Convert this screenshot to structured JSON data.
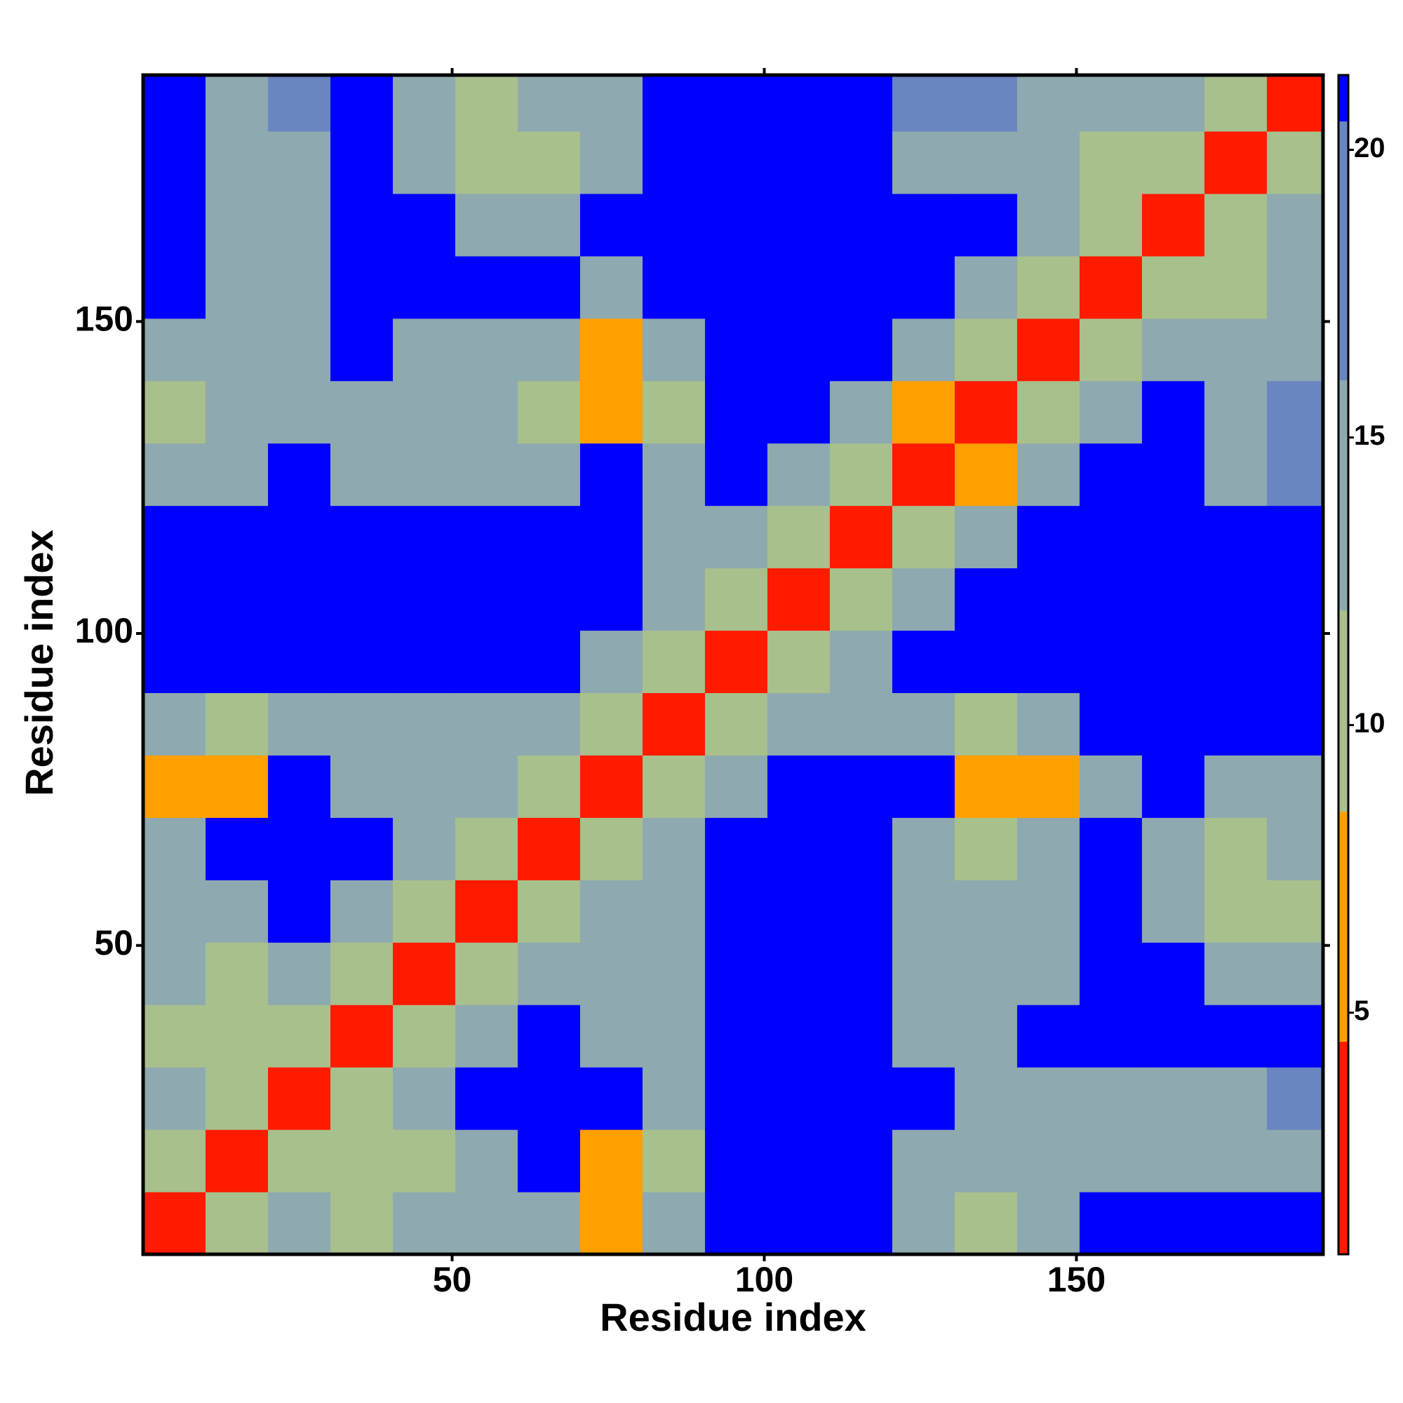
{
  "chart_data": {
    "type": "heatmap",
    "x_label": "Residue index",
    "y_label": "Residue index",
    "x_edges": [
      0.5,
      10.5,
      20.5,
      30.5,
      40.5,
      50.5,
      60.5,
      70.5,
      80.5,
      90.5,
      100.5,
      110.5,
      120.5,
      130.5,
      140.5,
      150.5,
      160.5,
      170.5,
      180.5,
      189.5
    ],
    "y_edges": [
      0.5,
      10.5,
      20.5,
      30.5,
      40.5,
      50.5,
      60.5,
      70.5,
      80.5,
      90.5,
      100.5,
      110.5,
      120.5,
      130.5,
      140.5,
      150.5,
      160.5,
      170.5,
      180.5,
      189.5
    ],
    "values": [
      [
        3,
        11,
        13,
        12,
        14,
        15,
        16,
        8,
        13,
        21,
        21,
        21,
        15,
        12,
        16,
        21,
        21,
        21,
        21
      ],
      [
        11,
        3,
        11,
        9,
        12,
        16,
        21,
        8,
        11,
        21,
        21,
        21,
        16,
        13,
        16,
        16,
        16,
        15,
        16
      ],
      [
        13,
        11,
        3,
        11,
        14,
        21,
        21,
        21,
        14,
        21,
        21,
        21,
        21,
        15,
        15,
        15,
        14,
        15,
        17
      ],
      [
        12,
        9,
        11,
        3,
        11,
        13,
        21,
        14,
        15,
        21,
        21,
        21,
        16,
        15,
        21,
        21,
        21,
        21,
        21
      ],
      [
        14,
        12,
        14,
        11,
        3,
        9,
        13,
        13,
        14,
        21,
        21,
        21,
        14,
        13,
        16,
        21,
        21,
        14,
        13
      ],
      [
        15,
        16,
        21,
        13,
        9,
        3,
        9,
        13,
        14,
        21,
        21,
        21,
        13,
        13,
        14,
        21,
        16,
        12,
        12
      ],
      [
        16,
        21,
        21,
        21,
        13,
        9,
        3,
        11,
        14,
        21,
        21,
        21,
        13,
        12,
        13,
        21,
        16,
        11,
        13
      ],
      [
        8,
        8,
        21,
        14,
        13,
        13,
        11,
        3,
        11,
        15,
        21,
        21,
        21,
        8,
        8,
        16,
        21,
        13,
        16
      ],
      [
        13,
        11,
        14,
        15,
        14,
        14,
        14,
        11,
        3,
        11,
        16,
        16,
        14,
        9,
        14,
        21,
        21,
        21,
        21
      ],
      [
        21,
        21,
        21,
        21,
        21,
        21,
        21,
        15,
        11,
        3,
        11,
        16,
        21,
        21,
        21,
        21,
        21,
        21,
        21
      ],
      [
        21,
        21,
        21,
        21,
        21,
        21,
        21,
        21,
        16,
        11,
        3,
        11,
        15,
        21,
        21,
        21,
        21,
        21,
        21
      ],
      [
        21,
        21,
        21,
        21,
        21,
        21,
        21,
        21,
        16,
        16,
        11,
        3,
        10,
        15,
        21,
        21,
        21,
        21,
        21
      ],
      [
        15,
        16,
        21,
        16,
        14,
        13,
        13,
        21,
        14,
        21,
        15,
        10,
        3,
        8,
        13,
        21,
        21,
        16,
        17
      ],
      [
        12,
        13,
        15,
        15,
        13,
        13,
        12,
        8,
        9,
        21,
        21,
        15,
        8,
        3,
        11,
        15,
        21,
        16,
        17
      ],
      [
        16,
        16,
        15,
        21,
        16,
        14,
        13,
        8,
        14,
        21,
        21,
        21,
        13,
        11,
        3,
        11,
        13,
        14,
        16
      ],
      [
        21,
        16,
        15,
        21,
        21,
        21,
        21,
        16,
        21,
        21,
        21,
        21,
        21,
        15,
        11,
        3,
        11,
        12,
        14
      ],
      [
        21,
        16,
        14,
        21,
        21,
        16,
        16,
        21,
        21,
        21,
        21,
        21,
        21,
        21,
        13,
        11,
        3,
        11,
        13
      ],
      [
        21,
        15,
        15,
        21,
        14,
        12,
        11,
        13,
        21,
        21,
        21,
        21,
        16,
        16,
        14,
        12,
        11,
        3,
        11
      ],
      [
        21,
        16,
        17,
        21,
        13,
        12,
        13,
        16,
        21,
        21,
        21,
        21,
        17,
        17,
        16,
        14,
        13,
        11,
        3
      ]
    ],
    "xlim": [
      0.5,
      189.5
    ],
    "ylim": [
      0.5,
      189.5
    ],
    "xticks": [
      50,
      100,
      150
    ],
    "yticks": [
      50,
      100,
      150
    ],
    "zlim": [
      0.8,
      21.3
    ],
    "zticks": [
      5,
      10,
      15,
      20
    ],
    "colorscale": [
      {
        "max": 4.5,
        "color": "#ff1a00"
      },
      {
        "max": 8.5,
        "color": "#ffa000"
      },
      {
        "max": 12,
        "color": "#a8c08c"
      },
      {
        "max": 16,
        "color": "#8fa9b0"
      },
      {
        "max": 20.5,
        "color": "#6a86c0"
      },
      {
        "color": "#0000ff"
      }
    ]
  }
}
